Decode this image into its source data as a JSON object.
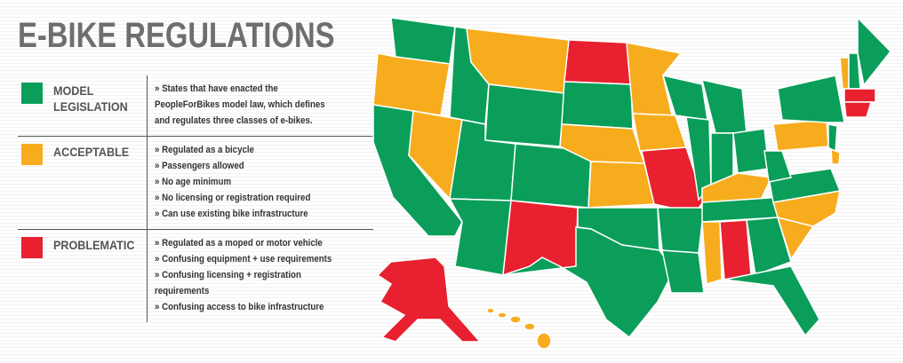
{
  "header": {
    "title": "E-BIKE REGULATIONS"
  },
  "legend": [
    {
      "label": "MODEL LEGISLATION",
      "items": [
        "» States that have enacted the PeopleForBikes model law, which defines and regulates three classes of e-bikes."
      ]
    },
    {
      "label": "ACCEPTABLE",
      "items": [
        "» Regulated as a bicycle",
        "» Passengers allowed",
        "» No age minimum",
        "» No licensing or registration required",
        "» Can use existing bike infrastructure"
      ]
    },
    {
      "label": "PROBLEMATIC",
      "items": [
        "» Regulated as a moped or motor vehicle",
        "» Confusing equipment + use requirements",
        "» Confusing licensing + registration requirements",
        "» Confusing access to bike infrastructure"
      ]
    }
  ]
}
